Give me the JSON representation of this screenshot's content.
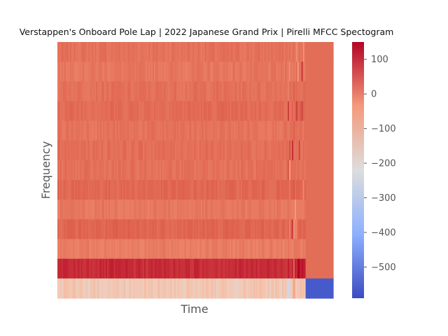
{
  "chart_data": {
    "type": "heatmap",
    "title": "Verstappen's Onboard Pole Lap | 2022 Japanese Grand Prix | Pirelli MFCC Spectogram",
    "xlabel": "Time",
    "ylabel": "Frequency",
    "x_ticks": [],
    "y_ticks": [],
    "colormap": "coolwarm",
    "colorbar": {
      "vmin": -590,
      "vmax": 150,
      "ticks": [
        100,
        0,
        -100,
        -200,
        -300,
        -400,
        -500
      ],
      "tick_labels": [
        "100",
        "0",
        "−100",
        "−200",
        "−300",
        "−400",
        "−500"
      ]
    },
    "rows": [
      {
        "coefficient": 13,
        "mean": 30
      },
      {
        "coefficient": 12,
        "mean": 22
      },
      {
        "coefficient": 11,
        "mean": 32
      },
      {
        "coefficient": 10,
        "mean": 40
      },
      {
        "coefficient": 9,
        "mean": 28
      },
      {
        "coefficient": 8,
        "mean": 35
      },
      {
        "coefficient": 7,
        "mean": 30
      },
      {
        "coefficient": 6,
        "mean": 45
      },
      {
        "coefficient": 5,
        "mean": 20
      },
      {
        "coefficient": 4,
        "mean": 48
      },
      {
        "coefficient": 3,
        "mean": 12
      },
      {
        "coefficient": 2,
        "mean": 110
      },
      {
        "coefficient": 1,
        "mean": -140
      }
    ],
    "audio_end_fraction": 0.9,
    "padding_value": 35,
    "padding_value_first_coefficient": -565
  }
}
